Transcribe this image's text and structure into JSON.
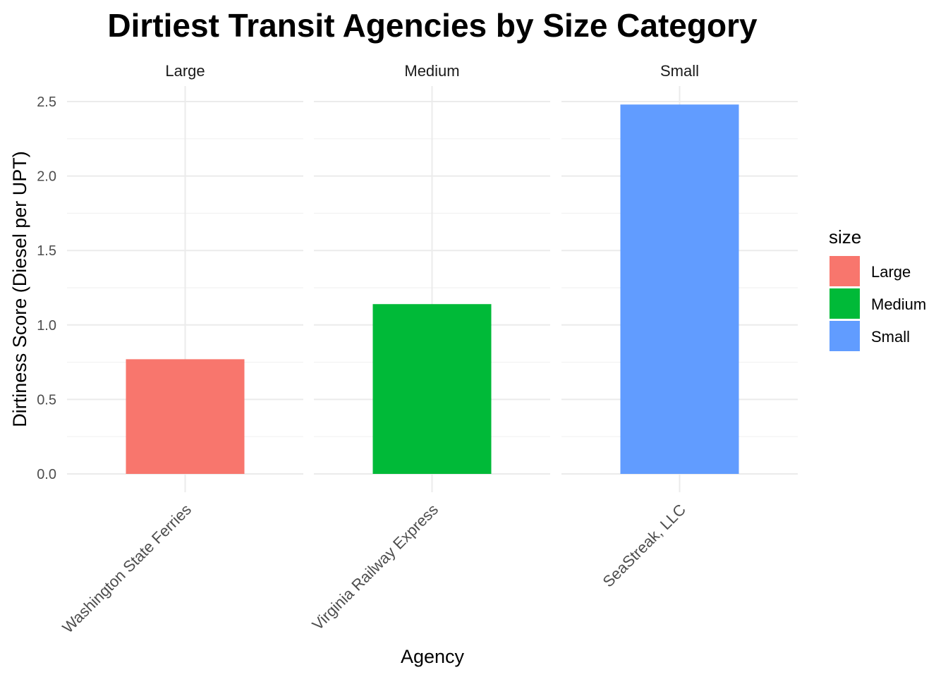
{
  "chart_data": {
    "type": "bar",
    "title": "Dirtiest Transit Agencies by Size Category",
    "xlabel": "Agency",
    "ylabel": "Dirtiness Score (Diesel per UPT)",
    "ylim": [
      0,
      2.5
    ],
    "yticks": [
      "0.0",
      "0.5",
      "1.0",
      "1.5",
      "2.0",
      "2.5"
    ],
    "grid": true,
    "facets": [
      {
        "label": "Large",
        "category": "Washington State Ferries",
        "value": 0.77,
        "color": "#F8766D"
      },
      {
        "label": "Medium",
        "category": "Virginia Railway Express",
        "value": 1.14,
        "color": "#00BA38"
      },
      {
        "label": "Small",
        "category": "SeaStreak, LLC",
        "value": 2.48,
        "color": "#619CFF"
      }
    ],
    "legend": {
      "title": "size",
      "position": "right",
      "items": [
        {
          "label": "Large",
          "color": "#F8766D"
        },
        {
          "label": "Medium",
          "color": "#00BA38"
        },
        {
          "label": "Small",
          "color": "#619CFF"
        }
      ]
    }
  }
}
